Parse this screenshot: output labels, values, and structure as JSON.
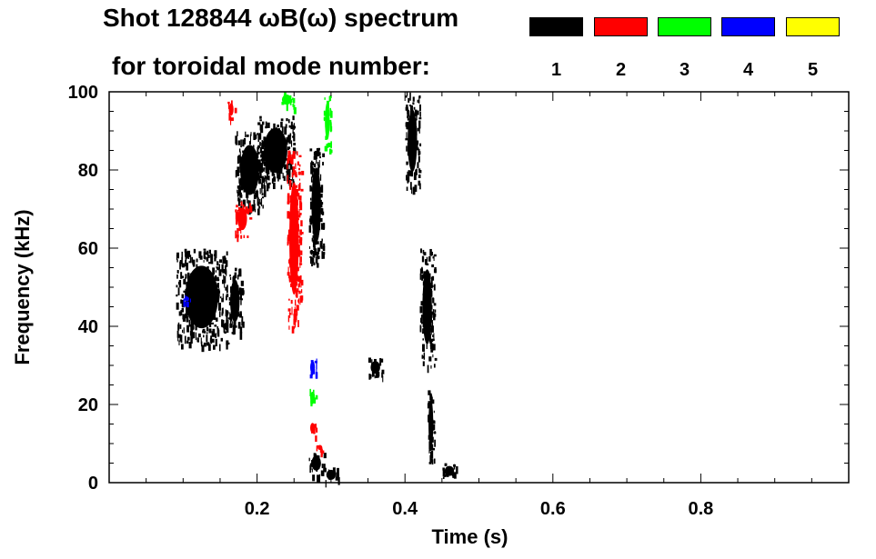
{
  "title_line1": "Shot 128844 ωB(ω) spectrum",
  "title_line2": "for toroidal mode number:",
  "legend": [
    {
      "label": "1",
      "color": "#000000"
    },
    {
      "label": "2",
      "color": "#ff0000"
    },
    {
      "label": "3",
      "color": "#00ff00"
    },
    {
      "label": "4",
      "color": "#0000ff"
    },
    {
      "label": "5",
      "color": "#ffff00"
    }
  ],
  "chart_data": {
    "type": "heatmap",
    "title": "Shot 128844 ωB(ω) spectrum",
    "subtitle": "for toroidal mode number:",
    "xlabel": "Time (s)",
    "ylabel": "Frequency (kHz)",
    "xlim": [
      0.0,
      1.0
    ],
    "ylim": [
      0,
      100
    ],
    "xticks": [
      0.2,
      0.4,
      0.6,
      0.8
    ],
    "yticks": [
      0,
      20,
      40,
      60,
      80,
      100
    ],
    "grid": false,
    "legend_position": "top-right",
    "series": [
      {
        "name": "1",
        "color": "#000000",
        "regions": [
          {
            "t": [
              0.09,
              0.16
            ],
            "f": [
              35,
              60
            ]
          },
          {
            "t": [
              0.16,
              0.18
            ],
            "f": [
              38,
              55
            ]
          },
          {
            "t": [
              0.17,
              0.21
            ],
            "f": [
              70,
              90
            ]
          },
          {
            "t": [
              0.2,
              0.25
            ],
            "f": [
              76,
              94
            ]
          },
          {
            "t": [
              0.27,
              0.29
            ],
            "f": [
              56,
              86
            ]
          },
          {
            "t": [
              0.27,
              0.29
            ],
            "f": [
              2,
              8
            ]
          },
          {
            "t": [
              0.29,
              0.31
            ],
            "f": [
              0,
              4
            ]
          },
          {
            "t": [
              0.4,
              0.42
            ],
            "f": [
              75,
              100
            ]
          },
          {
            "t": [
              0.42,
              0.44
            ],
            "f": [
              30,
              60
            ]
          },
          {
            "t": [
              0.43,
              0.44
            ],
            "f": [
              5,
              25
            ]
          },
          {
            "t": [
              0.45,
              0.47
            ],
            "f": [
              1,
              5
            ]
          },
          {
            "t": [
              0.35,
              0.37
            ],
            "f": [
              27,
              32
            ]
          }
        ]
      },
      {
        "name": "2",
        "color": "#ff0000",
        "regions": [
          {
            "t": [
              0.24,
              0.26
            ],
            "f": [
              40,
              85
            ]
          },
          {
            "t": [
              0.17,
              0.19
            ],
            "f": [
              63,
              72
            ]
          },
          {
            "t": [
              0.16,
              0.17
            ],
            "f": [
              93,
              98
            ]
          },
          {
            "t": [
              0.27,
              0.28
            ],
            "f": [
              12,
              16
            ]
          },
          {
            "t": [
              0.28,
              0.29
            ],
            "f": [
              8,
              10
            ]
          }
        ]
      },
      {
        "name": "3",
        "color": "#00ff00",
        "regions": [
          {
            "t": [
              0.29,
              0.3
            ],
            "f": [
              85,
              100
            ]
          },
          {
            "t": [
              0.27,
              0.28
            ],
            "f": [
              20,
              24
            ]
          },
          {
            "t": [
              0.23,
              0.25
            ],
            "f": [
              96,
              100
            ]
          }
        ]
      },
      {
        "name": "4",
        "color": "#0000ff",
        "regions": [
          {
            "t": [
              0.27,
              0.28
            ],
            "f": [
              27,
              32
            ]
          },
          {
            "t": [
              0.1,
              0.11
            ],
            "f": [
              46,
              48
            ]
          }
        ]
      },
      {
        "name": "5",
        "color": "#ffff00",
        "regions": []
      }
    ]
  }
}
